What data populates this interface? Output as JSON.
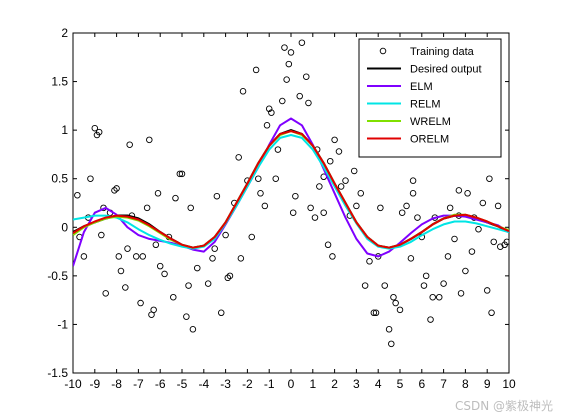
{
  "watermark": "CSDN @紫极神光",
  "chart_data": {
    "type": "line",
    "title": "",
    "xlabel": "",
    "ylabel": "",
    "xlim": [
      -10,
      10
    ],
    "ylim": [
      -1.5,
      2
    ],
    "xticks": [
      -10,
      -9,
      -8,
      -7,
      -6,
      -5,
      -4,
      -3,
      -2,
      -1,
      0,
      1,
      2,
      3,
      4,
      5,
      6,
      7,
      8,
      9,
      10
    ],
    "yticks": [
      -1.5,
      -1,
      -0.5,
      0,
      0.5,
      1,
      1.5,
      2
    ],
    "grid": false,
    "legend_position": "top-right",
    "series": [
      {
        "name": "Desired output",
        "color": "#000000",
        "style": "line",
        "x": [
          -10,
          -9.5,
          -9,
          -8.5,
          -8,
          -7.5,
          -7,
          -6.5,
          -6,
          -5.5,
          -5,
          -4.5,
          -4,
          -3.5,
          -3,
          -2.5,
          -2,
          -1.5,
          -1,
          -0.5,
          0,
          0.5,
          1,
          1.5,
          2,
          2.5,
          3,
          3.5,
          4,
          4.5,
          5,
          5.5,
          6,
          6.5,
          7,
          7.5,
          8,
          8.5,
          9,
          9.5,
          10
        ],
        "y": [
          -0.05,
          0.01,
          0.05,
          0.09,
          0.12,
          0.12,
          0.09,
          0.03,
          -0.05,
          -0.12,
          -0.18,
          -0.21,
          -0.19,
          -0.1,
          0.05,
          0.25,
          0.45,
          0.66,
          0.84,
          0.96,
          1.0,
          0.96,
          0.84,
          0.66,
          0.45,
          0.25,
          0.05,
          -0.1,
          -0.19,
          -0.21,
          -0.18,
          -0.12,
          -0.05,
          0.03,
          0.09,
          0.12,
          0.12,
          0.09,
          0.05,
          0.01,
          -0.05
        ]
      },
      {
        "name": "ELM",
        "color": "#7f00ff",
        "style": "line",
        "x": [
          -10,
          -9.5,
          -9,
          -8.5,
          -8,
          -7.5,
          -7,
          -6.5,
          -6,
          -5.5,
          -5,
          -4.5,
          -4,
          -3.5,
          -3,
          -2.5,
          -2,
          -1.5,
          -1,
          -0.5,
          0,
          0.5,
          1,
          1.5,
          2,
          2.5,
          3,
          3.5,
          4,
          4.5,
          5,
          5.5,
          6,
          6.5,
          7,
          7.5,
          8,
          8.5,
          9,
          9.5,
          10
        ],
        "y": [
          -0.4,
          -0.05,
          0.15,
          0.2,
          0.13,
          0.0,
          -0.08,
          -0.12,
          -0.14,
          -0.16,
          -0.19,
          -0.23,
          -0.25,
          -0.15,
          0.03,
          0.22,
          0.42,
          0.62,
          0.85,
          1.05,
          1.12,
          1.05,
          0.85,
          0.6,
          0.35,
          0.1,
          -0.12,
          -0.27,
          -0.3,
          -0.25,
          -0.16,
          -0.06,
          0.03,
          0.09,
          0.12,
          0.12,
          0.11,
          0.08,
          0.05,
          0.02,
          -0.05
        ]
      },
      {
        "name": "RELM",
        "color": "#00e5e5",
        "style": "line",
        "x": [
          -10,
          -9.5,
          -9,
          -8.5,
          -8,
          -7.5,
          -7,
          -6.5,
          -6,
          -5.5,
          -5,
          -4.5,
          -4,
          -3.5,
          -3,
          -2.5,
          -2,
          -1.5,
          -1,
          -0.5,
          0,
          0.5,
          1,
          1.5,
          2,
          2.5,
          3,
          3.5,
          4,
          4.5,
          5,
          5.5,
          6,
          6.5,
          7,
          7.5,
          8,
          8.5,
          9,
          9.5,
          10
        ],
        "y": [
          0.08,
          0.1,
          0.12,
          0.12,
          0.1,
          0.05,
          -0.02,
          -0.08,
          -0.13,
          -0.17,
          -0.2,
          -0.22,
          -0.2,
          -0.12,
          0.04,
          0.22,
          0.42,
          0.62,
          0.8,
          0.92,
          0.95,
          0.92,
          0.8,
          0.62,
          0.42,
          0.22,
          0.04,
          -0.12,
          -0.2,
          -0.22,
          -0.2,
          -0.15,
          -0.08,
          -0.02,
          0.03,
          0.06,
          0.06,
          0.04,
          0.01,
          -0.02,
          -0.05
        ]
      },
      {
        "name": "WRELM",
        "color": "#80e000",
        "style": "line",
        "x": [
          -10,
          -9.5,
          -9,
          -8.5,
          -8,
          -7.5,
          -7,
          -6.5,
          -6,
          -5.5,
          -5,
          -4.5,
          -4,
          -3.5,
          -3,
          -2.5,
          -2,
          -1.5,
          -1,
          -0.5,
          0,
          0.5,
          1,
          1.5,
          2,
          2.5,
          3,
          3.5,
          4,
          4.5,
          5,
          5.5,
          6,
          6.5,
          7,
          7.5,
          8,
          8.5,
          9,
          9.5,
          10
        ],
        "y": [
          -0.08,
          0.0,
          0.05,
          0.09,
          0.11,
          0.1,
          0.07,
          0.01,
          -0.06,
          -0.13,
          -0.18,
          -0.21,
          -0.19,
          -0.1,
          0.05,
          0.25,
          0.45,
          0.66,
          0.84,
          0.95,
          0.99,
          0.95,
          0.84,
          0.66,
          0.45,
          0.25,
          0.05,
          -0.1,
          -0.19,
          -0.21,
          -0.18,
          -0.12,
          -0.05,
          0.03,
          0.09,
          0.13,
          0.13,
          0.1,
          0.06,
          0.01,
          -0.03
        ]
      },
      {
        "name": "ORELM",
        "color": "#e00000",
        "style": "line",
        "x": [
          -10,
          -9.5,
          -9,
          -8.5,
          -8,
          -7.5,
          -7,
          -6.5,
          -6,
          -5.5,
          -5,
          -4.5,
          -4,
          -3.5,
          -3,
          -2.5,
          -2,
          -1.5,
          -1,
          -0.5,
          0,
          0.5,
          1,
          1.5,
          2,
          2.5,
          3,
          3.5,
          4,
          4.5,
          5,
          5.5,
          6,
          6.5,
          7,
          7.5,
          8,
          8.5,
          9,
          9.5,
          10
        ],
        "y": [
          -0.06,
          0.01,
          0.06,
          0.1,
          0.12,
          0.11,
          0.08,
          0.02,
          -0.05,
          -0.12,
          -0.18,
          -0.21,
          -0.19,
          -0.1,
          0.05,
          0.25,
          0.45,
          0.66,
          0.84,
          0.96,
          0.99,
          0.96,
          0.84,
          0.66,
          0.45,
          0.25,
          0.05,
          -0.1,
          -0.19,
          -0.21,
          -0.18,
          -0.12,
          -0.05,
          0.03,
          0.09,
          0.12,
          0.13,
          0.1,
          0.06,
          0.01,
          -0.04
        ]
      }
    ],
    "scatter": {
      "name": "Training data",
      "marker": "open-circle",
      "color": "#000000",
      "points": [
        [
          -9.8,
          0.33
        ],
        [
          -9.7,
          -0.1
        ],
        [
          -9.5,
          -0.3
        ],
        [
          -9.3,
          0.1
        ],
        [
          -9.2,
          0.5
        ],
        [
          -9.0,
          1.02
        ],
        [
          -8.9,
          0.95
        ],
        [
          -8.8,
          0.98
        ],
        [
          -8.6,
          0.2
        ],
        [
          -8.5,
          -0.68
        ],
        [
          -8.3,
          0.15
        ],
        [
          -8.1,
          0.38
        ],
        [
          -8.0,
          0.4
        ],
        [
          -7.9,
          -0.3
        ],
        [
          -7.8,
          -0.45
        ],
        [
          -7.6,
          -0.62
        ],
        [
          -7.5,
          -0.22
        ],
        [
          -7.4,
          0.85
        ],
        [
          -7.3,
          0.12
        ],
        [
          -7.1,
          -0.3
        ],
        [
          -6.9,
          -0.78
        ],
        [
          -6.8,
          -0.3
        ],
        [
          -6.6,
          0.2
        ],
        [
          -6.5,
          0.9
        ],
        [
          -6.4,
          -0.9
        ],
        [
          -6.3,
          -0.85
        ],
        [
          -6.2,
          -0.18
        ],
        [
          -6.1,
          0.35
        ],
        [
          -6.0,
          -0.4
        ],
        [
          -5.8,
          -0.48
        ],
        [
          -5.6,
          -0.1
        ],
        [
          -5.4,
          -0.72
        ],
        [
          -5.3,
          0.3
        ],
        [
          -5.1,
          0.55
        ],
        [
          -5.0,
          0.55
        ],
        [
          -4.8,
          -0.92
        ],
        [
          -4.7,
          -0.6
        ],
        [
          -4.6,
          0.2
        ],
        [
          -4.5,
          -1.05
        ],
        [
          -4.3,
          -0.42
        ],
        [
          -3.8,
          -0.58
        ],
        [
          -3.5,
          -0.22
        ],
        [
          -3.4,
          0.32
        ],
        [
          -3.2,
          -0.88
        ],
        [
          -3.0,
          -0.08
        ],
        [
          -2.9,
          -0.52
        ],
        [
          -2.8,
          -0.5
        ],
        [
          -2.6,
          0.25
        ],
        [
          -2.4,
          0.72
        ],
        [
          -2.2,
          1.4
        ],
        [
          -2.0,
          0.48
        ],
        [
          -1.8,
          -0.1
        ],
        [
          -1.6,
          1.62
        ],
        [
          -1.5,
          0.5
        ],
        [
          -1.4,
          0.35
        ],
        [
          -1.2,
          0.22
        ],
        [
          -1.0,
          1.22
        ],
        [
          -0.9,
          1.18
        ],
        [
          -0.7,
          0.5
        ],
        [
          -0.6,
          0.8
        ],
        [
          -0.4,
          1.3
        ],
        [
          -0.3,
          1.85
        ],
        [
          -0.2,
          1.52
        ],
        [
          -0.1,
          1.68
        ],
        [
          0.0,
          1.8
        ],
        [
          0.1,
          0.15
        ],
        [
          0.2,
          0.32
        ],
        [
          0.4,
          1.35
        ],
        [
          0.5,
          1.9
        ],
        [
          0.7,
          1.55
        ],
        [
          0.8,
          1.28
        ],
        [
          0.9,
          0.2
        ],
        [
          1.1,
          0.1
        ],
        [
          1.2,
          0.8
        ],
        [
          1.3,
          0.42
        ],
        [
          1.5,
          0.15
        ],
        [
          1.7,
          -0.18
        ],
        [
          1.8,
          0.68
        ],
        [
          1.9,
          -0.3
        ],
        [
          2.0,
          0.9
        ],
        [
          2.2,
          0.78
        ],
        [
          2.3,
          0.42
        ],
        [
          2.5,
          0.48
        ],
        [
          2.7,
          0.12
        ],
        [
          2.9,
          0.58
        ],
        [
          3.0,
          0.22
        ],
        [
          3.2,
          0.35
        ],
        [
          3.4,
          -0.6
        ],
        [
          3.6,
          -0.35
        ],
        [
          3.8,
          -0.88
        ],
        [
          3.9,
          -0.88
        ],
        [
          4.0,
          -0.3
        ],
        [
          4.1,
          0.2
        ],
        [
          4.3,
          -0.6
        ],
        [
          4.5,
          -1.05
        ],
        [
          4.6,
          -1.2
        ],
        [
          4.7,
          -0.72
        ],
        [
          4.8,
          -0.78
        ],
        [
          5.0,
          -0.85
        ],
        [
          5.1,
          0.15
        ],
        [
          5.3,
          0.22
        ],
        [
          5.5,
          -0.32
        ],
        [
          5.6,
          0.35
        ],
        [
          5.8,
          0.1
        ],
        [
          6.0,
          -0.1
        ],
        [
          6.1,
          -0.6
        ],
        [
          6.2,
          -0.5
        ],
        [
          6.4,
          -0.95
        ],
        [
          6.5,
          -0.72
        ],
        [
          6.6,
          0.1
        ],
        [
          6.8,
          -0.72
        ],
        [
          7.0,
          -0.58
        ],
        [
          7.2,
          -0.3
        ],
        [
          7.3,
          0.2
        ],
        [
          7.5,
          -0.12
        ],
        [
          7.7,
          0.12
        ],
        [
          7.8,
          -0.68
        ],
        [
          8.0,
          -0.45
        ],
        [
          8.1,
          0.35
        ],
        [
          8.3,
          -0.25
        ],
        [
          8.4,
          0.1
        ],
        [
          8.6,
          -0.02
        ],
        [
          8.8,
          0.25
        ],
        [
          9.0,
          -0.65
        ],
        [
          9.1,
          0.5
        ],
        [
          9.2,
          -0.88
        ],
        [
          9.3,
          -0.15
        ],
        [
          9.5,
          0.22
        ],
        [
          9.6,
          -0.2
        ],
        [
          9.8,
          -0.18
        ],
        [
          9.9,
          -0.15
        ],
        [
          -1.1,
          1.05
        ],
        [
          1.5,
          0.52
        ],
        [
          -3.6,
          -0.32
        ],
        [
          5.6,
          0.48
        ],
        [
          -8.7,
          -0.08
        ],
        [
          7.7,
          0.38
        ],
        [
          -2.3,
          -0.32
        ]
      ]
    },
    "legend": [
      "Training data",
      "Desired output",
      "ELM",
      "RELM",
      "WRELM",
      "ORELM"
    ]
  }
}
